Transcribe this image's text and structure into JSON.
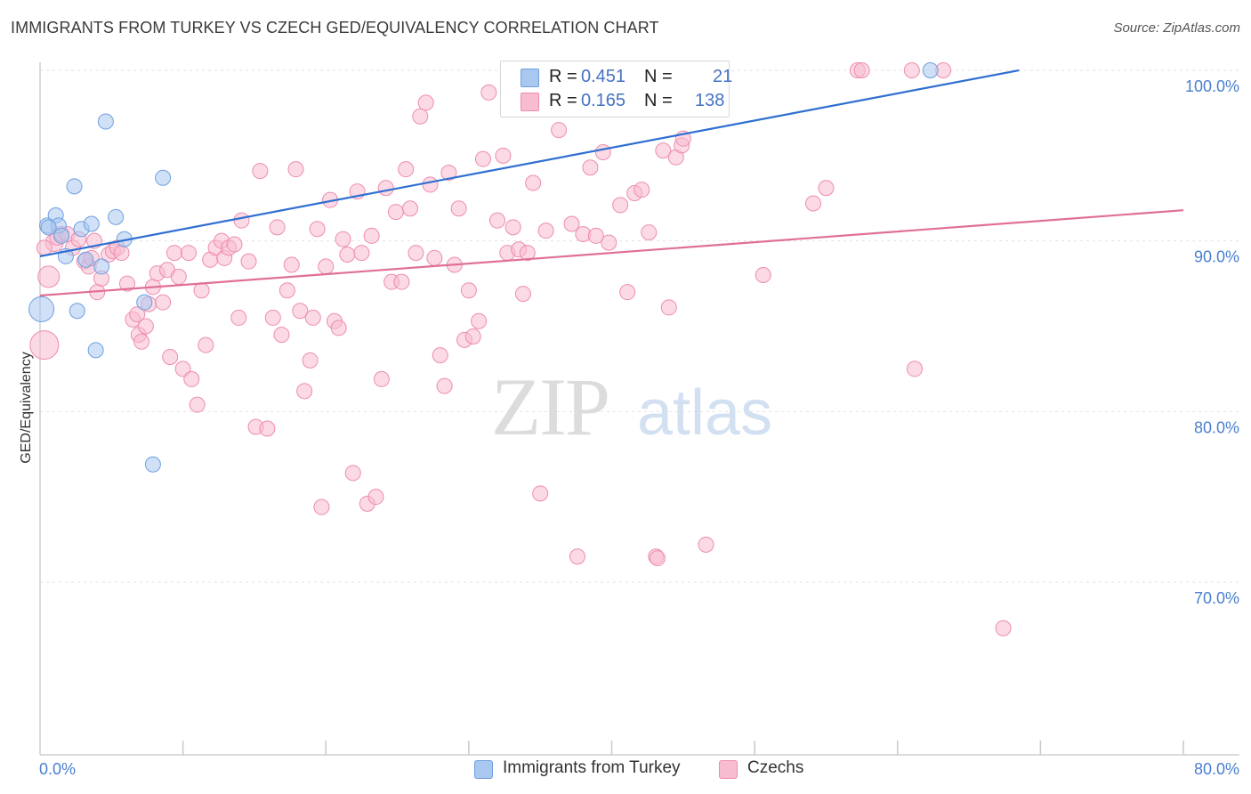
{
  "title": "IMMIGRANTS FROM TURKEY VS CZECH GED/EQUIVALENCY CORRELATION CHART",
  "source": "Source: ZipAtlas.com",
  "watermark": {
    "zip": "ZIP",
    "atlas": "atlas"
  },
  "legend": {
    "rows": [
      {
        "r_label": "R =",
        "r_value": "0.451",
        "n_label": "N =",
        "n_value": "21",
        "color": "#a9c8f0"
      },
      {
        "r_label": "R =",
        "r_value": "0.165",
        "n_label": "N =",
        "n_value": "138",
        "color": "#f8bcd0"
      }
    ]
  },
  "bottom_legend": [
    {
      "label": "Immigrants from Turkey",
      "color": "#a9c8f0"
    },
    {
      "label": "Czechs",
      "color": "#f8bcd0"
    }
  ],
  "chart_data": {
    "type": "scatter",
    "title": "IMMIGRANTS FROM TURKEY VS CZECH GED/EQUIVALENCY CORRELATION CHART",
    "xlabel": "",
    "ylabel": "GED/Equivalency",
    "xlim": [
      0,
      80
    ],
    "ylim": [
      60.5,
      101.5
    ],
    "x_tick_labels": [
      "0.0%",
      "80.0%"
    ],
    "y_ticks": [
      70,
      80,
      90,
      100
    ],
    "y_tick_labels": [
      "70.0%",
      "80.0%",
      "90.0%",
      "100.0%"
    ],
    "grid": true,
    "series": [
      {
        "name": "Immigrants from Turkey",
        "color": "#a9c8f0",
        "stroke": "#6f9fe0",
        "line_color": "#2f6fd0",
        "trend": {
          "x": [
            0,
            68.5
          ],
          "y": [
            89.1,
            100.0
          ]
        },
        "points": [
          [
            0.1,
            86.0
          ],
          [
            0.5,
            90.9
          ],
          [
            1.1,
            91.5
          ],
          [
            1.3,
            90.9
          ],
          [
            1.5,
            90.3
          ],
          [
            1.8,
            89.1
          ],
          [
            2.4,
            93.2
          ],
          [
            2.6,
            85.9
          ],
          [
            2.9,
            90.7
          ],
          [
            3.2,
            88.9
          ],
          [
            3.6,
            91.0
          ],
          [
            3.9,
            83.6
          ],
          [
            4.3,
            88.5
          ],
          [
            4.6,
            97.0
          ],
          [
            5.3,
            91.4
          ],
          [
            5.9,
            90.1
          ],
          [
            7.3,
            86.4
          ],
          [
            7.9,
            76.9
          ],
          [
            8.6,
            93.7
          ],
          [
            0.6,
            90.8
          ],
          [
            62.3,
            100.0
          ]
        ]
      },
      {
        "name": "Czechs",
        "color": "#f8bcd0",
        "stroke": "#ee8cae",
        "line_color": "#e06f98",
        "trend": {
          "x": [
            0,
            80
          ],
          "y": [
            86.8,
            91.8
          ]
        },
        "points": [
          [
            0.3,
            83.9
          ],
          [
            0.6,
            87.9
          ],
          [
            1.0,
            89.9
          ],
          [
            1.2,
            90.2
          ],
          [
            1.5,
            90.4
          ],
          [
            1.9,
            90.4
          ],
          [
            2.3,
            89.6
          ],
          [
            2.7,
            90.1
          ],
          [
            3.1,
            88.8
          ],
          [
            3.4,
            88.5
          ],
          [
            3.8,
            90.0
          ],
          [
            4.0,
            87.0
          ],
          [
            4.3,
            87.8
          ],
          [
            4.8,
            89.2
          ],
          [
            5.1,
            89.4
          ],
          [
            5.4,
            89.6
          ],
          [
            5.7,
            89.3
          ],
          [
            6.1,
            87.5
          ],
          [
            6.5,
            85.4
          ],
          [
            6.8,
            85.7
          ],
          [
            6.9,
            84.5
          ],
          [
            7.1,
            84.1
          ],
          [
            7.4,
            85.0
          ],
          [
            7.6,
            86.3
          ],
          [
            7.9,
            87.3
          ],
          [
            8.2,
            88.1
          ],
          [
            8.6,
            86.4
          ],
          [
            8.9,
            88.3
          ],
          [
            9.1,
            83.2
          ],
          [
            9.4,
            89.3
          ],
          [
            9.7,
            87.9
          ],
          [
            10.0,
            82.5
          ],
          [
            10.4,
            89.3
          ],
          [
            10.6,
            81.9
          ],
          [
            11.0,
            80.4
          ],
          [
            11.3,
            87.1
          ],
          [
            11.6,
            83.9
          ],
          [
            11.9,
            88.9
          ],
          [
            12.3,
            89.6
          ],
          [
            12.7,
            90.0
          ],
          [
            12.9,
            89.0
          ],
          [
            13.2,
            89.6
          ],
          [
            13.6,
            89.8
          ],
          [
            13.9,
            85.5
          ],
          [
            14.1,
            91.2
          ],
          [
            14.6,
            88.8
          ],
          [
            15.1,
            79.1
          ],
          [
            15.4,
            94.1
          ],
          [
            15.9,
            79.0
          ],
          [
            16.3,
            85.5
          ],
          [
            16.6,
            90.8
          ],
          [
            16.9,
            84.5
          ],
          [
            17.3,
            87.1
          ],
          [
            17.6,
            88.6
          ],
          [
            17.9,
            94.2
          ],
          [
            18.2,
            85.9
          ],
          [
            18.5,
            81.2
          ],
          [
            18.9,
            83.0
          ],
          [
            19.1,
            85.5
          ],
          [
            19.4,
            90.7
          ],
          [
            19.7,
            74.4
          ],
          [
            20.0,
            88.5
          ],
          [
            20.3,
            92.4
          ],
          [
            20.6,
            85.3
          ],
          [
            20.9,
            84.9
          ],
          [
            21.2,
            90.1
          ],
          [
            21.5,
            89.2
          ],
          [
            21.9,
            76.4
          ],
          [
            22.2,
            92.9
          ],
          [
            22.5,
            89.3
          ],
          [
            22.9,
            74.6
          ],
          [
            23.2,
            90.3
          ],
          [
            23.5,
            75.0
          ],
          [
            23.9,
            81.9
          ],
          [
            24.2,
            93.1
          ],
          [
            24.6,
            87.6
          ],
          [
            24.9,
            91.7
          ],
          [
            25.3,
            87.6
          ],
          [
            25.6,
            94.2
          ],
          [
            25.9,
            91.9
          ],
          [
            26.3,
            89.3
          ],
          [
            26.6,
            97.3
          ],
          [
            27.0,
            98.1
          ],
          [
            27.3,
            93.3
          ],
          [
            27.6,
            89.0
          ],
          [
            28.0,
            83.3
          ],
          [
            28.3,
            81.5
          ],
          [
            28.6,
            94.0
          ],
          [
            29.0,
            88.6
          ],
          [
            29.3,
            91.9
          ],
          [
            29.7,
            84.2
          ],
          [
            30.0,
            87.1
          ],
          [
            30.3,
            84.4
          ],
          [
            30.7,
            85.3
          ],
          [
            31.0,
            94.8
          ],
          [
            31.4,
            98.7
          ],
          [
            32.0,
            91.2
          ],
          [
            32.4,
            95.0
          ],
          [
            32.7,
            89.3
          ],
          [
            33.1,
            90.8
          ],
          [
            33.5,
            89.5
          ],
          [
            33.8,
            86.9
          ],
          [
            34.1,
            89.3
          ],
          [
            34.5,
            93.4
          ],
          [
            35.0,
            75.2
          ],
          [
            35.4,
            90.6
          ],
          [
            36.3,
            96.5
          ],
          [
            37.2,
            91.0
          ],
          [
            37.6,
            71.5
          ],
          [
            38.0,
            90.4
          ],
          [
            38.5,
            94.3
          ],
          [
            38.9,
            90.3
          ],
          [
            39.4,
            95.2
          ],
          [
            39.8,
            89.9
          ],
          [
            40.6,
            92.1
          ],
          [
            41.1,
            87.0
          ],
          [
            41.6,
            92.8
          ],
          [
            42.1,
            93.0
          ],
          [
            42.6,
            90.5
          ],
          [
            43.1,
            71.5
          ],
          [
            43.6,
            95.3
          ],
          [
            44.0,
            86.1
          ],
          [
            44.5,
            94.9
          ],
          [
            44.9,
            95.6
          ],
          [
            45.0,
            96.0
          ],
          [
            46.6,
            72.2
          ],
          [
            50.6,
            88.0
          ],
          [
            54.1,
            92.2
          ],
          [
            55.0,
            93.1
          ],
          [
            57.2,
            100.0
          ],
          [
            57.5,
            100.0
          ],
          [
            61.0,
            100.0
          ],
          [
            61.2,
            82.5
          ],
          [
            63.2,
            100.0
          ],
          [
            67.4,
            67.3
          ],
          [
            0.3,
            89.6
          ],
          [
            3.6,
            89.0
          ],
          [
            43.2,
            71.4
          ]
        ]
      }
    ]
  }
}
